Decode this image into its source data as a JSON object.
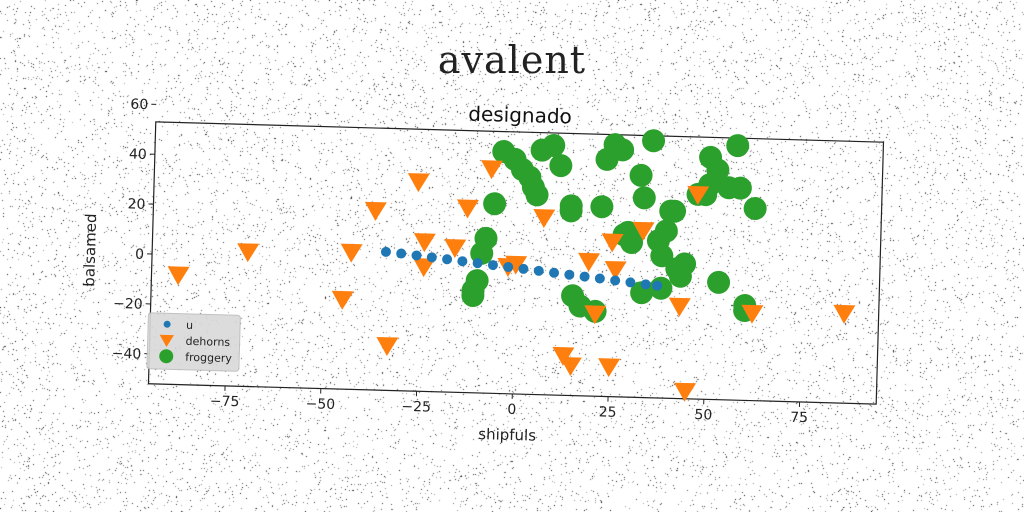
{
  "figure": {
    "suptitle": "avalent"
  },
  "chart_data": {
    "type": "scatter",
    "title": "designado",
    "xlabel": "shipfuls",
    "ylabel": "balsamed",
    "xlim": [
      -95,
      95
    ],
    "ylim": [
      -52,
      53
    ],
    "xticks": [
      -75,
      -50,
      -25,
      0,
      25,
      50,
      75
    ],
    "yticks": [
      -40,
      -20,
      0,
      20,
      40,
      60
    ],
    "xtick_labels": [
      "−75",
      "−50",
      "−25",
      "0",
      "25",
      "50",
      "75"
    ],
    "ytick_labels": [
      "−40",
      "−20",
      "0",
      "20",
      "40",
      "60"
    ],
    "grid": false,
    "legend_position": "lower-left",
    "series": [
      {
        "name": "u",
        "marker": "circle-small",
        "color": "#1f77b4",
        "x": [
          -34,
          -30,
          -26,
          -22,
          -18,
          -14,
          -10,
          -6,
          -2,
          2,
          6,
          10,
          14,
          18,
          22,
          26,
          30,
          34,
          37
        ],
        "y": [
          3.5,
          3,
          2.4,
          1.8,
          1.2,
          0.6,
          0,
          -0.6,
          -1.2,
          -1.8,
          -2.4,
          -3,
          -3.6,
          -4.2,
          -4.8,
          -5.4,
          -6,
          -6.6,
          -7
        ]
      },
      {
        "name": "dehorns",
        "marker": "triangle-down",
        "color": "#ff7f0e",
        "x": [
          -88,
          -70,
          -43,
          -45,
          -37,
          -33,
          -26,
          -24,
          -24,
          -16,
          -13,
          -7,
          -2,
          0,
          7,
          13,
          15,
          19,
          21,
          25,
          25,
          26,
          33,
          43,
          45,
          47,
          62,
          86
        ],
        "y": [
          -8,
          2,
          3,
          -16,
          20,
          -34,
          32,
          8,
          -2,
          6,
          22,
          38,
          -1,
          0,
          19,
          -36,
          -40,
          2,
          -19,
          -40,
          10,
          -1,
          15,
          -15,
          -49,
          30,
          -17,
          -16
        ]
      },
      {
        "name": "froggery",
        "marker": "circle-large",
        "color": "#2ca02c",
        "x": [
          -4,
          -1,
          1,
          3,
          4,
          5,
          6,
          9,
          11,
          14,
          14,
          15,
          17,
          21,
          22,
          23,
          25,
          27,
          28,
          29,
          30,
          32,
          33,
          33,
          35,
          37,
          38,
          38,
          39,
          40,
          41,
          42,
          43,
          44,
          47,
          49,
          50,
          50,
          52,
          53,
          55,
          57,
          58,
          60,
          60,
          62,
          -6,
          -8,
          -9,
          -10,
          -11,
          -11
        ],
        "y": [
          45,
          42,
          38,
          35,
          31,
          28,
          46,
          48,
          40,
          22,
          24,
          -12,
          -16,
          -18,
          24,
          43,
          49,
          47,
          13,
          14,
          10,
          37,
          -10,
          28,
          51,
          11,
          -8,
          5,
          15,
          23,
          23,
          0,
          -3,
          2,
          30,
          30,
          34,
          45,
          40,
          -5,
          33,
          50,
          33,
          -16,
          -14,
          25,
          24,
          10,
          4,
          -7,
          -13,
          -11
        ]
      }
    ]
  }
}
